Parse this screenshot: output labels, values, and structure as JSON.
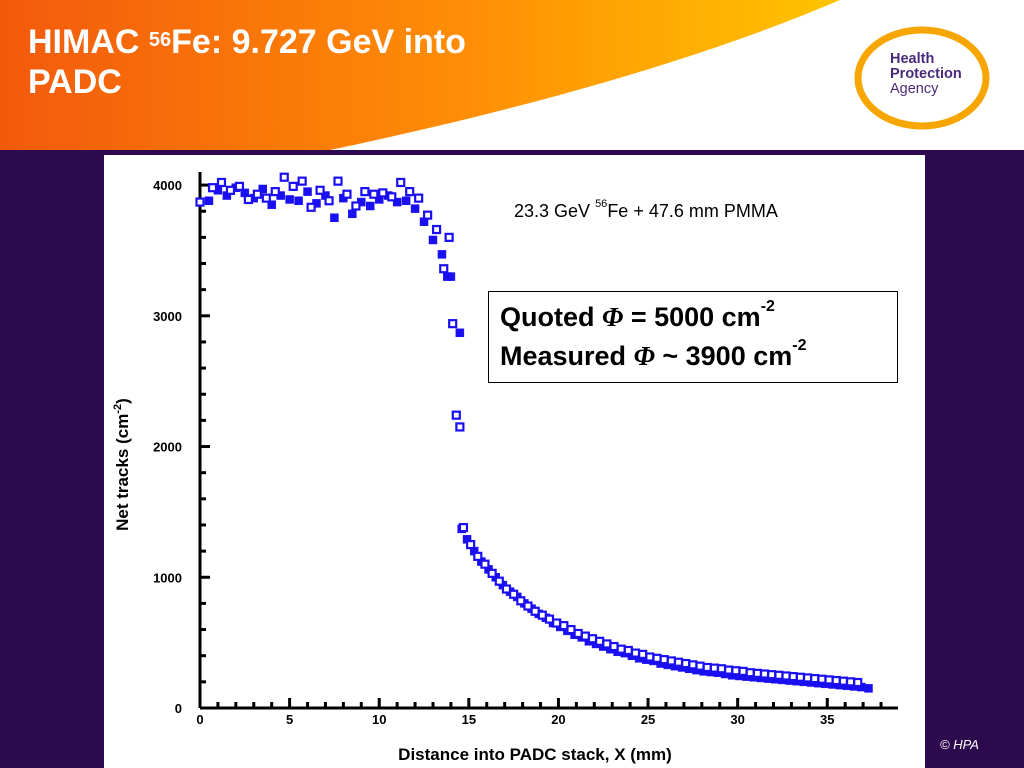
{
  "header": {
    "title_line1_pre": "HIMAC ",
    "title_sup": "56",
    "title_line1_post": "Fe: 9.727 GeV into",
    "title_line2": "PADC",
    "colors": {
      "orange_dark": "#f25a0c",
      "orange_light": "#ffb300"
    }
  },
  "logo": {
    "line1": "Health",
    "line2": "Protection",
    "line3": "Agency",
    "colors": {
      "ring": "#f7a600",
      "text": "#4a2a7a"
    }
  },
  "annotation": {
    "pre": "23.3 GeV ",
    "sup": "56",
    "post": "Fe + 47.6 mm PMMA"
  },
  "quote_box": {
    "line1_label": "Quoted ",
    "line1_symbol": "Φ",
    "line1_value": " = 5000 cm",
    "line1_exp": "-2",
    "line2_label": "Measured ",
    "line2_symbol": "Φ",
    "line2_value": " ~ 3900 cm",
    "line2_exp": "-2"
  },
  "footer": {
    "copyright": "© HPA"
  },
  "chart_data": {
    "type": "scatter",
    "title": "",
    "xlabel": "Distance into PADC stack, X (mm)",
    "ylabel": "Net tracks (cm-2)",
    "ylabel_parts": {
      "pre": "Net tracks (cm",
      "sup": "-2",
      "post": ")"
    },
    "xlim": [
      0,
      38.5
    ],
    "ylim": [
      0,
      4100
    ],
    "xticks": [
      "0",
      "5",
      "10",
      "15",
      "20",
      "25",
      "30",
      "35"
    ],
    "yticks": [
      "0",
      "1000",
      "2000",
      "3000",
      "4000"
    ],
    "marker_color": "#1a0ff0",
    "series": [
      {
        "marker": "filled-square",
        "points": [
          [
            0.5,
            3880
          ],
          [
            1.0,
            3960
          ],
          [
            1.5,
            3920
          ],
          [
            2.0,
            3980
          ],
          [
            2.5,
            3940
          ],
          [
            3.0,
            3900
          ],
          [
            3.5,
            3970
          ],
          [
            4.0,
            3850
          ],
          [
            4.5,
            3920
          ],
          [
            5.0,
            3890
          ],
          [
            5.5,
            3880
          ],
          [
            6.0,
            3950
          ],
          [
            6.5,
            3860
          ],
          [
            7.0,
            3920
          ],
          [
            7.5,
            3750
          ],
          [
            8.0,
            3900
          ],
          [
            8.5,
            3780
          ],
          [
            9.0,
            3870
          ],
          [
            9.5,
            3840
          ],
          [
            10.0,
            3890
          ],
          [
            10.5,
            3920
          ],
          [
            11.0,
            3870
          ],
          [
            11.5,
            3880
          ],
          [
            12.0,
            3820
          ],
          [
            12.5,
            3720
          ],
          [
            13.0,
            3580
          ],
          [
            13.5,
            3470
          ],
          [
            13.8,
            3300
          ],
          [
            14.0,
            3300
          ],
          [
            14.5,
            2870
          ],
          [
            14.6,
            1370
          ],
          [
            14.9,
            1290
          ],
          [
            15.3,
            1200
          ],
          [
            15.7,
            1120
          ],
          [
            16.1,
            1060
          ],
          [
            16.5,
            1000
          ],
          [
            16.9,
            940
          ],
          [
            17.3,
            890
          ],
          [
            17.7,
            850
          ],
          [
            18.1,
            800
          ],
          [
            18.5,
            760
          ],
          [
            18.9,
            720
          ],
          [
            19.3,
            690
          ],
          [
            19.7,
            650
          ],
          [
            20.1,
            620
          ],
          [
            20.5,
            590
          ],
          [
            20.9,
            560
          ],
          [
            21.3,
            540
          ],
          [
            21.7,
            510
          ],
          [
            22.1,
            490
          ],
          [
            22.5,
            470
          ],
          [
            22.9,
            450
          ],
          [
            23.3,
            430
          ],
          [
            23.7,
            420
          ],
          [
            24.1,
            400
          ],
          [
            24.5,
            380
          ],
          [
            24.9,
            370
          ],
          [
            25.3,
            360
          ],
          [
            25.7,
            340
          ],
          [
            26.1,
            330
          ],
          [
            26.5,
            320
          ],
          [
            26.9,
            310
          ],
          [
            27.3,
            300
          ],
          [
            27.7,
            290
          ],
          [
            28.1,
            280
          ],
          [
            28.5,
            275
          ],
          [
            28.9,
            270
          ],
          [
            29.3,
            260
          ],
          [
            29.7,
            250
          ],
          [
            30.1,
            245
          ],
          [
            30.5,
            240
          ],
          [
            30.9,
            235
          ],
          [
            31.3,
            230
          ],
          [
            31.7,
            225
          ],
          [
            32.1,
            220
          ],
          [
            32.5,
            215
          ],
          [
            32.9,
            210
          ],
          [
            33.3,
            205
          ],
          [
            33.7,
            200
          ],
          [
            34.1,
            195
          ],
          [
            34.5,
            190
          ],
          [
            34.9,
            185
          ],
          [
            35.3,
            180
          ],
          [
            35.7,
            175
          ],
          [
            36.1,
            170
          ],
          [
            36.5,
            165
          ],
          [
            36.9,
            160
          ],
          [
            37.3,
            150
          ]
        ]
      },
      {
        "marker": "open-square",
        "points": [
          [
            0.0,
            3870
          ],
          [
            0.7,
            3980
          ],
          [
            1.2,
            4020
          ],
          [
            1.7,
            3960
          ],
          [
            2.2,
            3990
          ],
          [
            2.7,
            3890
          ],
          [
            3.2,
            3930
          ],
          [
            3.7,
            3900
          ],
          [
            4.2,
            3950
          ],
          [
            4.7,
            4060
          ],
          [
            5.2,
            3990
          ],
          [
            5.7,
            4030
          ],
          [
            6.2,
            3830
          ],
          [
            6.7,
            3960
          ],
          [
            7.2,
            3880
          ],
          [
            7.7,
            4030
          ],
          [
            8.2,
            3930
          ],
          [
            8.7,
            3840
          ],
          [
            9.2,
            3950
          ],
          [
            9.7,
            3930
          ],
          [
            10.2,
            3940
          ],
          [
            10.7,
            3910
          ],
          [
            11.2,
            4020
          ],
          [
            11.7,
            3950
          ],
          [
            12.2,
            3900
          ],
          [
            12.7,
            3770
          ],
          [
            13.2,
            3660
          ],
          [
            13.6,
            3360
          ],
          [
            13.9,
            3600
          ],
          [
            14.1,
            2940
          ],
          [
            14.3,
            2240
          ],
          [
            14.5,
            2150
          ],
          [
            14.7,
            1380
          ],
          [
            15.1,
            1250
          ],
          [
            15.5,
            1160
          ],
          [
            15.9,
            1100
          ],
          [
            16.3,
            1030
          ],
          [
            16.7,
            970
          ],
          [
            17.1,
            910
          ],
          [
            17.5,
            870
          ],
          [
            17.9,
            820
          ],
          [
            18.3,
            780
          ],
          [
            18.7,
            740
          ],
          [
            19.1,
            710
          ],
          [
            19.5,
            680
          ],
          [
            19.9,
            650
          ],
          [
            20.3,
            630
          ],
          [
            20.7,
            600
          ],
          [
            21.1,
            570
          ],
          [
            21.5,
            550
          ],
          [
            21.9,
            530
          ],
          [
            22.3,
            510
          ],
          [
            22.7,
            490
          ],
          [
            23.1,
            470
          ],
          [
            23.5,
            450
          ],
          [
            23.9,
            440
          ],
          [
            24.3,
            420
          ],
          [
            24.7,
            410
          ],
          [
            25.1,
            390
          ],
          [
            25.5,
            380
          ],
          [
            25.9,
            370
          ],
          [
            26.3,
            360
          ],
          [
            26.7,
            350
          ],
          [
            27.1,
            340
          ],
          [
            27.5,
            330
          ],
          [
            27.9,
            320
          ],
          [
            28.3,
            310
          ],
          [
            28.7,
            305
          ],
          [
            29.1,
            300
          ],
          [
            29.5,
            290
          ],
          [
            29.9,
            285
          ],
          [
            30.3,
            280
          ],
          [
            30.7,
            270
          ],
          [
            31.1,
            265
          ],
          [
            31.5,
            260
          ],
          [
            31.9,
            255
          ],
          [
            32.3,
            250
          ],
          [
            32.7,
            245
          ],
          [
            33.1,
            240
          ],
          [
            33.5,
            235
          ],
          [
            33.9,
            230
          ],
          [
            34.3,
            225
          ],
          [
            34.7,
            220
          ],
          [
            35.1,
            215
          ],
          [
            35.5,
            210
          ],
          [
            35.9,
            205
          ],
          [
            36.3,
            200
          ],
          [
            36.7,
            195
          ]
        ]
      }
    ]
  }
}
